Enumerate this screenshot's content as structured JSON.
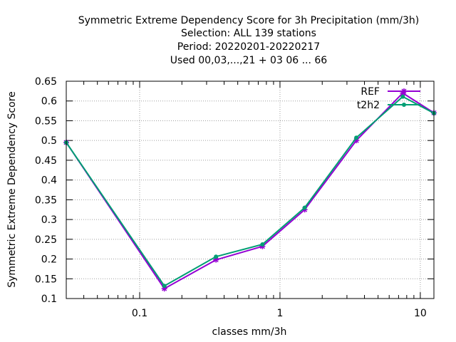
{
  "chart_data": {
    "type": "line",
    "title_lines": [
      "Symmetric Extreme Dependency Score  for 3h Precipitation (mm/3h)",
      "Selection: ALL     139 stations",
      "Period: 20220201-20220217",
      "Used  00,03,...,21  + 03 06 ... 66"
    ],
    "xlabel": "classes mm/3h",
    "ylabel": "Symmetric Extreme Dependency Score",
    "xscale": "log",
    "xlim": [
      0.03,
      12.5
    ],
    "ylim": [
      0.1,
      0.65
    ],
    "xticks": [
      {
        "value": 0.1,
        "label": "0.1"
      },
      {
        "value": 1,
        "label": "1"
      },
      {
        "value": 10,
        "label": "10"
      }
    ],
    "yticks": [
      {
        "value": 0.1,
        "label": "0.1"
      },
      {
        "value": 0.15,
        "label": "0.15"
      },
      {
        "value": 0.2,
        "label": "0.2"
      },
      {
        "value": 0.25,
        "label": "0.25"
      },
      {
        "value": 0.3,
        "label": "0.3"
      },
      {
        "value": 0.35,
        "label": "0.35"
      },
      {
        "value": 0.4,
        "label": "0.4"
      },
      {
        "value": 0.45,
        "label": "0.45"
      },
      {
        "value": 0.5,
        "label": "0.5"
      },
      {
        "value": 0.55,
        "label": "0.55"
      },
      {
        "value": 0.6,
        "label": "0.6"
      },
      {
        "value": 0.65,
        "label": "0.65"
      }
    ],
    "grid": true,
    "legend_position": "top-right",
    "series": [
      {
        "name": "REF",
        "color": "#9400d3",
        "x": [
          0.03,
          0.15,
          0.35,
          0.75,
          1.5,
          3.5,
          7.5,
          12.5
        ],
        "y": [
          0.495,
          0.125,
          0.198,
          0.232,
          0.325,
          0.5,
          0.62,
          0.57
        ]
      },
      {
        "name": "t2h2",
        "color": "#009e73",
        "x": [
          0.03,
          0.15,
          0.35,
          0.75,
          1.5,
          3.5,
          7.5,
          12.5
        ],
        "y": [
          0.495,
          0.132,
          0.206,
          0.237,
          0.33,
          0.507,
          0.611,
          0.569
        ]
      }
    ]
  }
}
